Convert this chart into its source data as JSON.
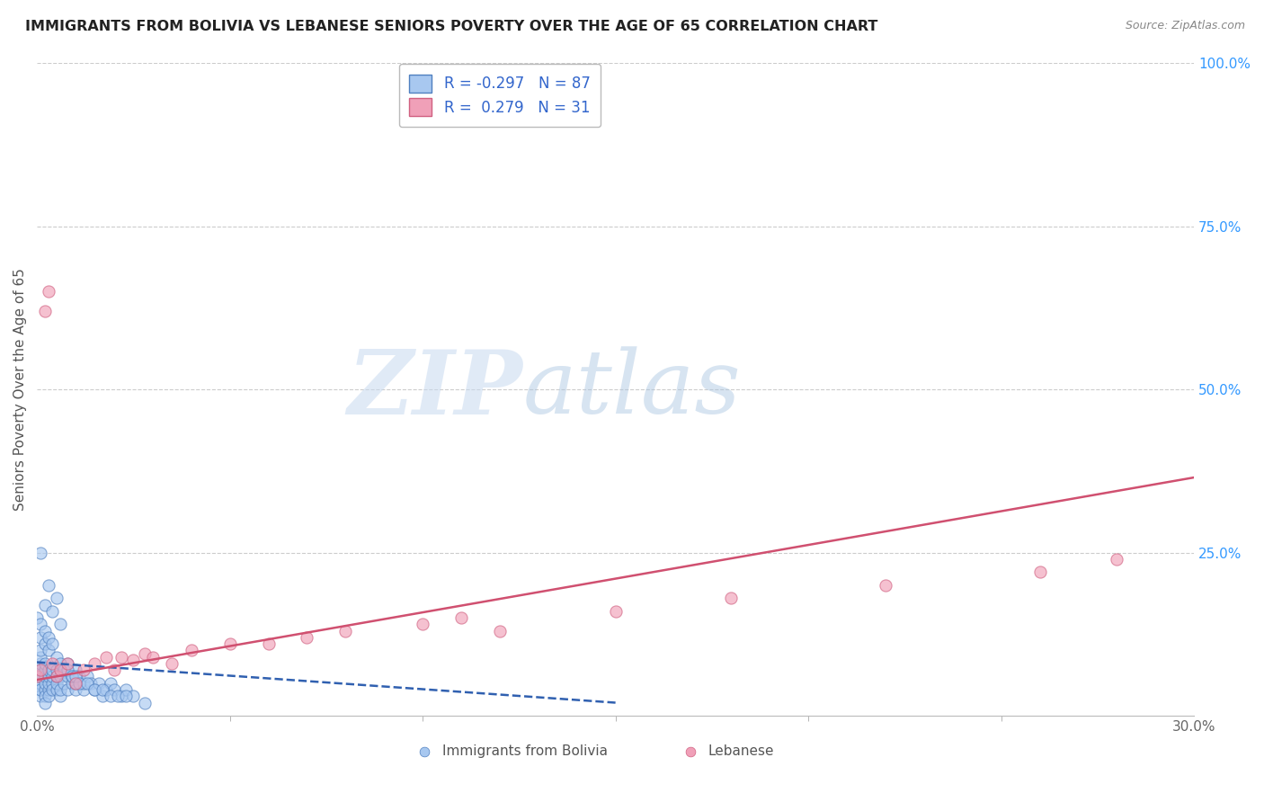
{
  "title": "IMMIGRANTS FROM BOLIVIA VS LEBANESE SENIORS POVERTY OVER THE AGE OF 65 CORRELATION CHART",
  "source": "Source: ZipAtlas.com",
  "ylabel": "Seniors Poverty Over the Age of 65",
  "legend_label1": "Immigrants from Bolivia",
  "legend_label2": "Lebanese",
  "R1": -0.297,
  "N1": 87,
  "R2": 0.279,
  "N2": 31,
  "xlim": [
    0.0,
    0.3
  ],
  "ylim": [
    0.0,
    1.0
  ],
  "color_blue": "#a8c8f0",
  "color_blue_edge": "#5080c0",
  "color_pink": "#f0a0b8",
  "color_pink_edge": "#d06080",
  "color_blue_line": "#3060b0",
  "color_pink_line": "#d05070",
  "watermark_zip": "ZIP",
  "watermark_atlas": "atlas",
  "blue_trend_x0": 0.0,
  "blue_trend_y0": 0.082,
  "blue_trend_x1": 0.15,
  "blue_trend_y1": 0.02,
  "pink_trend_x0": 0.0,
  "pink_trend_y0": 0.055,
  "pink_trend_x1": 0.3,
  "pink_trend_y1": 0.365,
  "scatter_blue_x": [
    0.0,
    0.0,
    0.0,
    0.001,
    0.001,
    0.001,
    0.001,
    0.001,
    0.001,
    0.001,
    0.001,
    0.001,
    0.002,
    0.002,
    0.002,
    0.002,
    0.002,
    0.002,
    0.002,
    0.003,
    0.003,
    0.003,
    0.003,
    0.003,
    0.004,
    0.004,
    0.004,
    0.004,
    0.005,
    0.005,
    0.005,
    0.005,
    0.006,
    0.006,
    0.006,
    0.007,
    0.007,
    0.008,
    0.008,
    0.008,
    0.009,
    0.009,
    0.01,
    0.01,
    0.01,
    0.011,
    0.012,
    0.012,
    0.013,
    0.014,
    0.015,
    0.016,
    0.017,
    0.018,
    0.019,
    0.02,
    0.022,
    0.023,
    0.025,
    0.028,
    0.0,
    0.001,
    0.001,
    0.002,
    0.002,
    0.003,
    0.003,
    0.004,
    0.005,
    0.006,
    0.007,
    0.008,
    0.009,
    0.01,
    0.011,
    0.013,
    0.015,
    0.017,
    0.019,
    0.021,
    0.023,
    0.001,
    0.003,
    0.005,
    0.002,
    0.004,
    0.006
  ],
  "scatter_blue_y": [
    0.05,
    0.06,
    0.07,
    0.04,
    0.05,
    0.06,
    0.07,
    0.08,
    0.09,
    0.1,
    0.03,
    0.04,
    0.04,
    0.05,
    0.06,
    0.07,
    0.08,
    0.03,
    0.02,
    0.04,
    0.05,
    0.06,
    0.07,
    0.03,
    0.05,
    0.06,
    0.07,
    0.04,
    0.04,
    0.05,
    0.06,
    0.07,
    0.03,
    0.04,
    0.06,
    0.05,
    0.07,
    0.04,
    0.06,
    0.08,
    0.05,
    0.06,
    0.04,
    0.05,
    0.07,
    0.06,
    0.04,
    0.05,
    0.06,
    0.05,
    0.04,
    0.05,
    0.03,
    0.04,
    0.05,
    0.04,
    0.03,
    0.04,
    0.03,
    0.02,
    0.15,
    0.12,
    0.14,
    0.13,
    0.11,
    0.12,
    0.1,
    0.11,
    0.09,
    0.08,
    0.07,
    0.07,
    0.06,
    0.06,
    0.05,
    0.05,
    0.04,
    0.04,
    0.03,
    0.03,
    0.03,
    0.25,
    0.2,
    0.18,
    0.17,
    0.16,
    0.14
  ],
  "scatter_pink_x": [
    0.0,
    0.001,
    0.002,
    0.003,
    0.004,
    0.005,
    0.006,
    0.008,
    0.01,
    0.012,
    0.015,
    0.018,
    0.02,
    0.022,
    0.025,
    0.028,
    0.03,
    0.035,
    0.04,
    0.05,
    0.06,
    0.07,
    0.08,
    0.1,
    0.11,
    0.12,
    0.15,
    0.18,
    0.22,
    0.26,
    0.28
  ],
  "scatter_pink_y": [
    0.06,
    0.07,
    0.62,
    0.65,
    0.08,
    0.06,
    0.07,
    0.08,
    0.05,
    0.07,
    0.08,
    0.09,
    0.07,
    0.09,
    0.085,
    0.095,
    0.09,
    0.08,
    0.1,
    0.11,
    0.11,
    0.12,
    0.13,
    0.14,
    0.15,
    0.13,
    0.16,
    0.18,
    0.2,
    0.22,
    0.24
  ]
}
